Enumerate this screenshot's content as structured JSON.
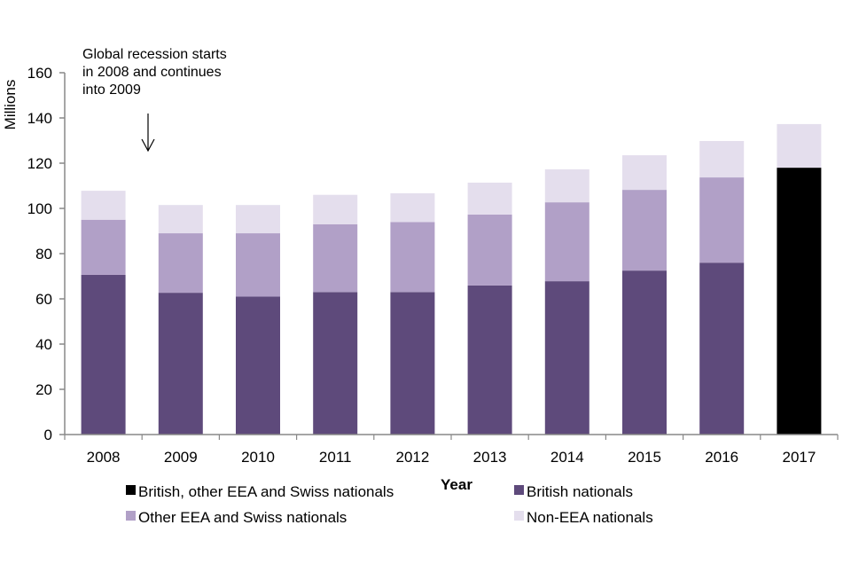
{
  "chart_data": {
    "type": "bar",
    "stacked": true,
    "title": "",
    "xlabel": "Year",
    "ylabel": "Millions",
    "ylim": [
      0,
      160
    ],
    "yticks": [
      0,
      20,
      40,
      60,
      80,
      100,
      120,
      140,
      160
    ],
    "grid": false,
    "categories": [
      "2008",
      "2009",
      "2010",
      "2011",
      "2012",
      "2013",
      "2014",
      "2015",
      "2016",
      "2017"
    ],
    "series": [
      {
        "name": "British, other EEA and Swiss nationals",
        "color": "#000000",
        "values": [
          null,
          null,
          null,
          null,
          null,
          null,
          null,
          null,
          null,
          118
        ]
      },
      {
        "name": "British nationals",
        "color": "#5e4a7b",
        "values": [
          70.6,
          62.7,
          61,
          63,
          63,
          65.9,
          67.8,
          72.5,
          76,
          null
        ]
      },
      {
        "name": "Other EEA and Swiss nationals",
        "color": "#b1a0c7",
        "values": [
          24.4,
          26.3,
          28,
          30,
          31,
          31.4,
          34.9,
          35.7,
          37.7,
          null
        ]
      },
      {
        "name": "Non-EEA nationals",
        "color": "#e4deed",
        "values": [
          12.8,
          12.5,
          12.5,
          13,
          12.7,
          14.1,
          14.6,
          15.3,
          16.1,
          19.3
        ]
      }
    ],
    "legend": {
      "position": "bottom",
      "order": [
        "British, other EEA and Swiss nationals",
        "British nationals",
        "Other EEA and Swiss nationals",
        "Non-EEA nationals"
      ]
    },
    "annotation": {
      "lines": [
        "Global recession starts",
        "in 2008 and continues",
        "into 2009"
      ],
      "arrow": "down",
      "target_category": "2008-2009"
    }
  }
}
